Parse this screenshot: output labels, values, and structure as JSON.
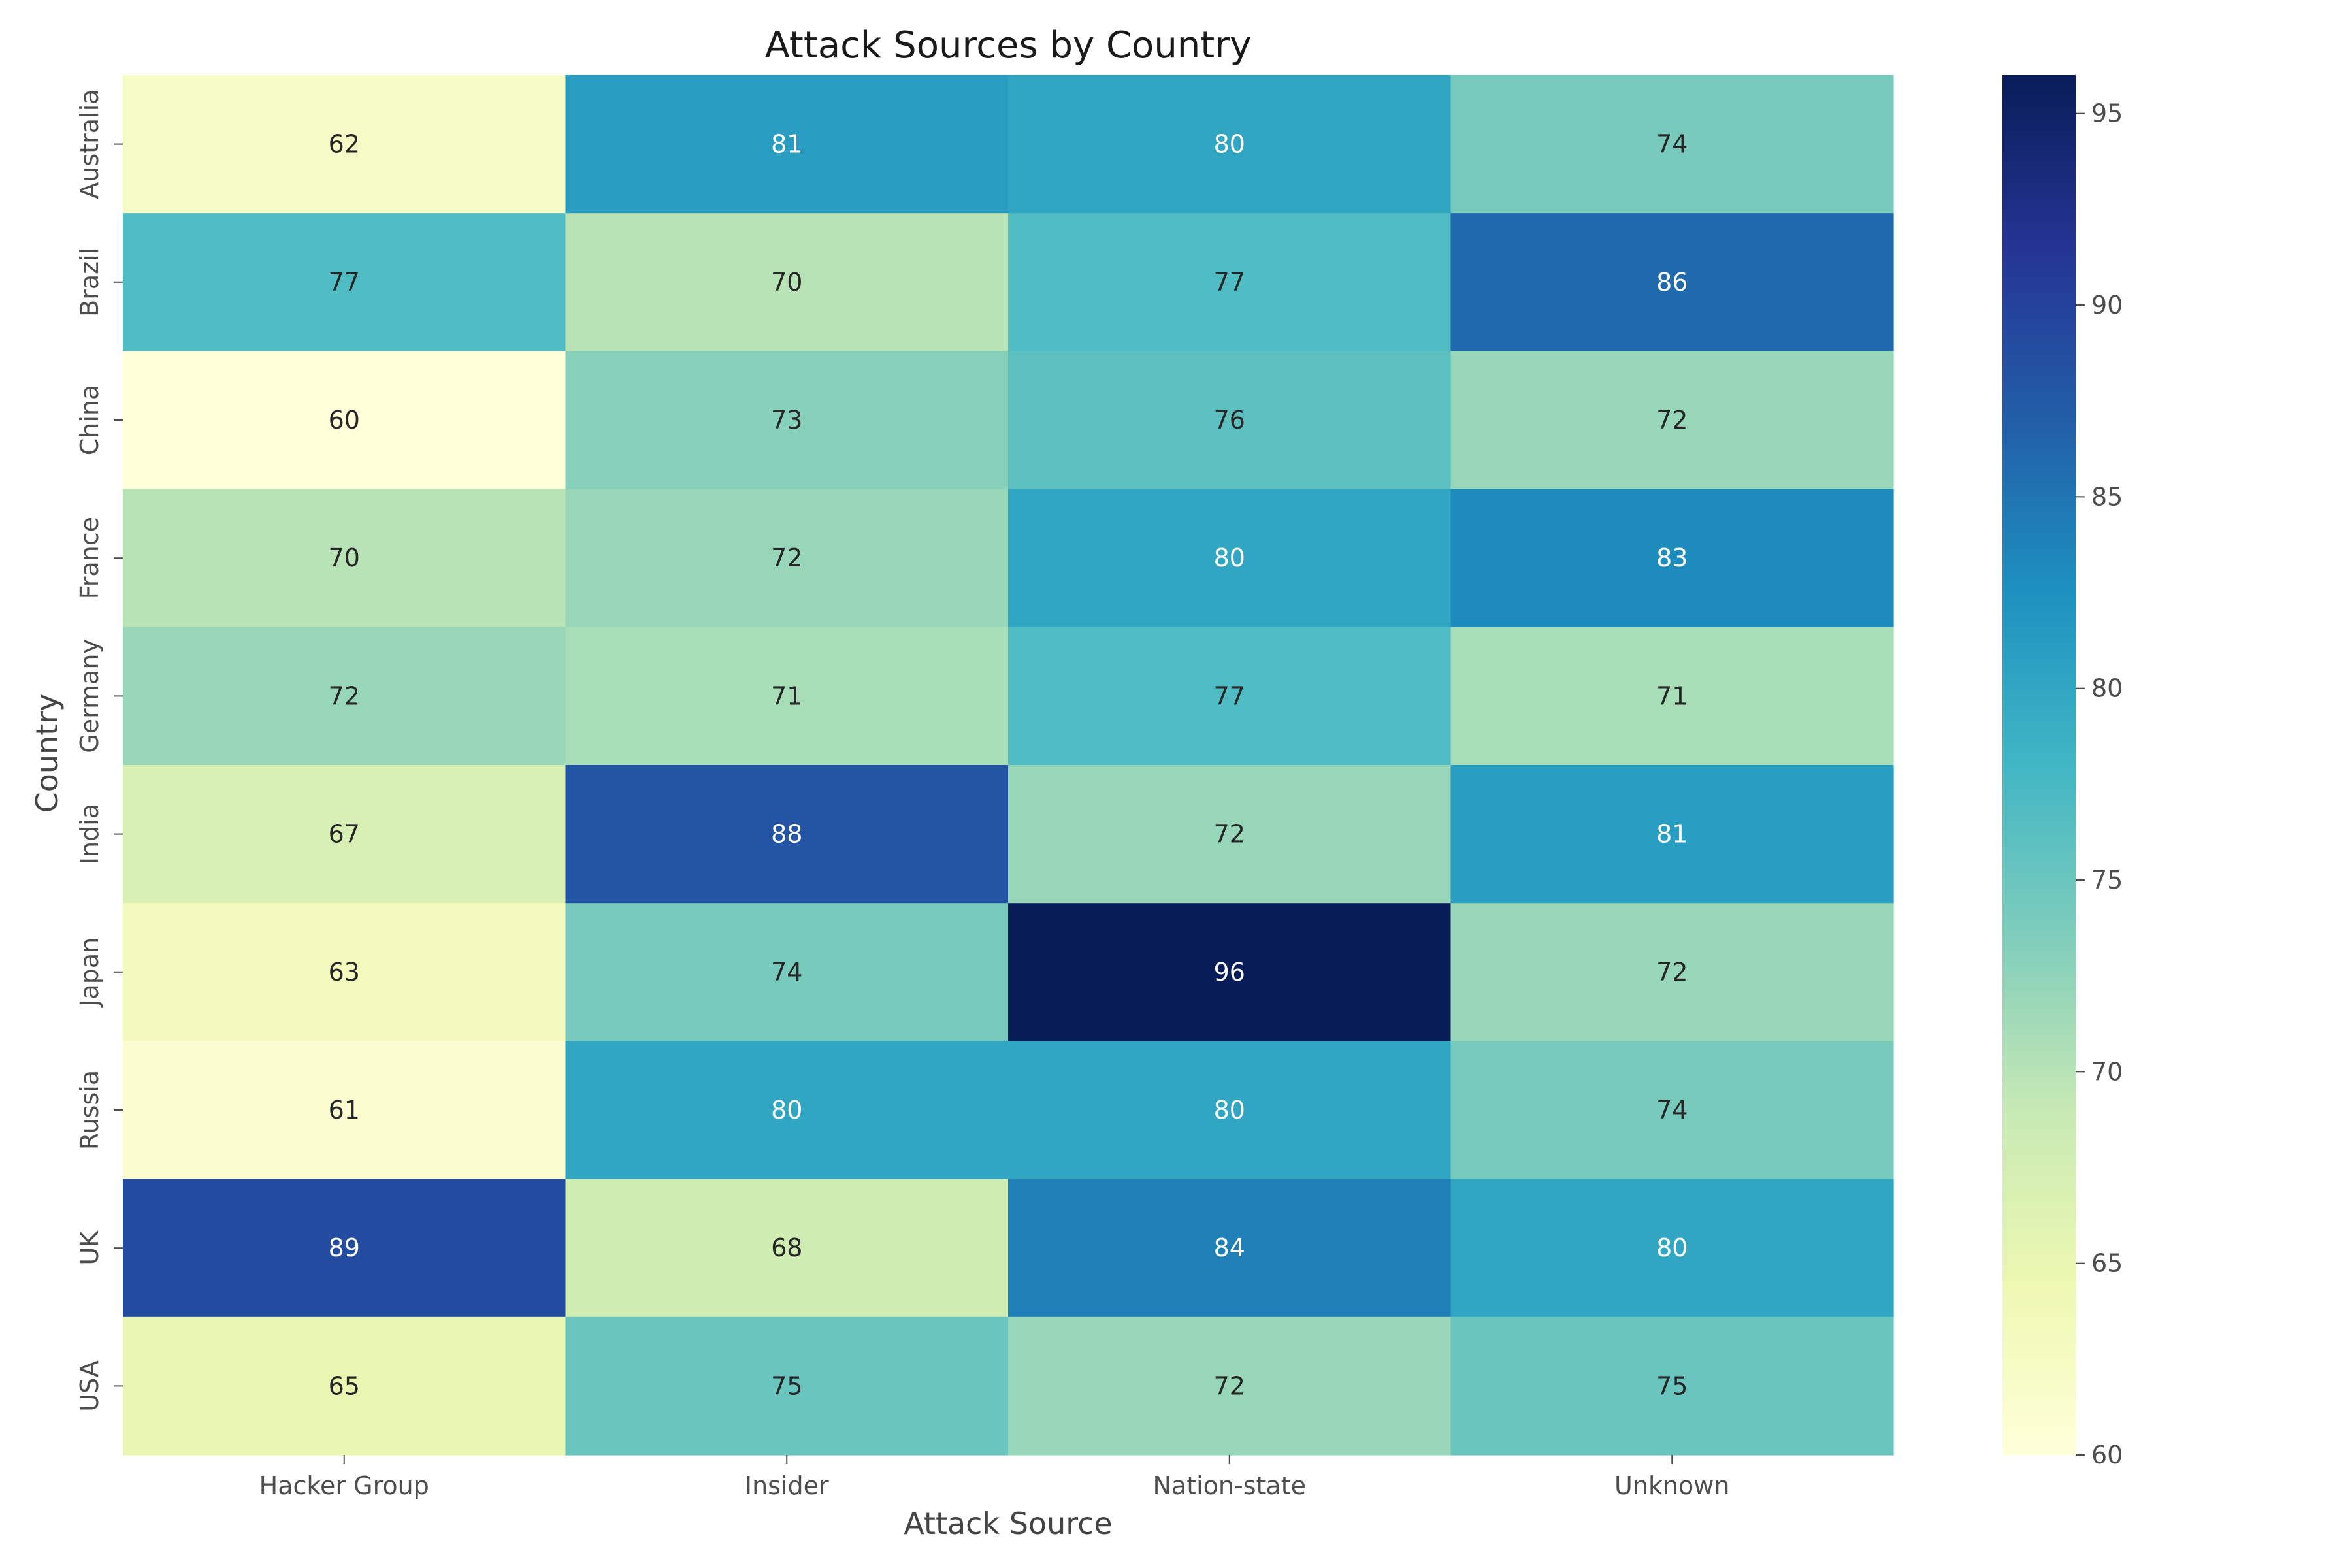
{
  "chart_data": {
    "type": "heatmap",
    "title": "Attack Sources by Country",
    "xlabel": "Attack Source",
    "ylabel": "Country",
    "x_categories": [
      "Hacker Group",
      "Insider",
      "Nation-state",
      "Unknown"
    ],
    "y_categories": [
      "Australia",
      "Brazil",
      "China",
      "France",
      "Germany",
      "India",
      "Japan",
      "Russia",
      "UK",
      "USA"
    ],
    "values": [
      [
        62,
        81,
        80,
        74
      ],
      [
        77,
        70,
        77,
        86
      ],
      [
        60,
        73,
        76,
        72
      ],
      [
        70,
        72,
        80,
        83
      ],
      [
        72,
        71,
        77,
        71
      ],
      [
        67,
        88,
        72,
        81
      ],
      [
        63,
        74,
        96,
        72
      ],
      [
        61,
        80,
        80,
        74
      ],
      [
        89,
        68,
        84,
        80
      ],
      [
        65,
        75,
        72,
        75
      ]
    ],
    "colormap": "YlGnBu",
    "colorbar": {
      "min": 60,
      "max": 96,
      "ticks": [
        60,
        65,
        70,
        75,
        80,
        85,
        90,
        95
      ]
    },
    "annotations": true,
    "grid": false
  }
}
